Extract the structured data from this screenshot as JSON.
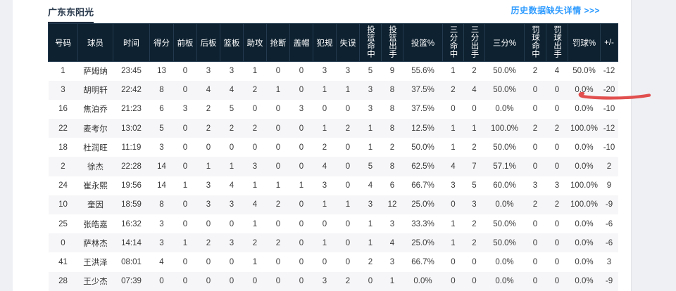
{
  "page": {
    "team_title": "广东东阳光",
    "history_link": "历史数据缺失详情 >>>",
    "colors": {
      "page_bg": "#eef0f4",
      "panel_bg": "#ffffff",
      "header_bg": "#0d2130",
      "header_border": "#243a4e",
      "link_blue": "#2e9bff",
      "row_alt": "#f6f6f8",
      "annotation_red": "#e14f4e"
    },
    "annotation": {
      "type": "hand-drawn-red-underline",
      "marks_row_player": "胡明轩",
      "marks_values": [
        "0.0%",
        "-20"
      ]
    }
  },
  "table": {
    "columns": [
      {
        "label": "号码",
        "vertical": false
      },
      {
        "label": "球员",
        "vertical": false
      },
      {
        "label": "时间",
        "vertical": false
      },
      {
        "label": "得分",
        "vertical": false
      },
      {
        "label": "前板",
        "vertical": false
      },
      {
        "label": "后板",
        "vertical": false
      },
      {
        "label": "篮板",
        "vertical": false
      },
      {
        "label": "助攻",
        "vertical": false
      },
      {
        "label": "抢断",
        "vertical": false
      },
      {
        "label": "盖帽",
        "vertical": false
      },
      {
        "label": "犯规",
        "vertical": false
      },
      {
        "label": "失误",
        "vertical": false
      },
      {
        "label": "投篮命中",
        "vertical": true
      },
      {
        "label": "投篮出手",
        "vertical": true
      },
      {
        "label": "投篮%",
        "vertical": false
      },
      {
        "label": "三分命中",
        "vertical": true
      },
      {
        "label": "三分出手",
        "vertical": true
      },
      {
        "label": "三分%",
        "vertical": false
      },
      {
        "label": "罚球命中",
        "vertical": true
      },
      {
        "label": "罚球出手",
        "vertical": true
      },
      {
        "label": "罚球%",
        "vertical": false
      },
      {
        "label": "+/-",
        "vertical": false
      }
    ],
    "rows": [
      [
        "1",
        "萨姆纳",
        "23:45",
        "13",
        "0",
        "3",
        "3",
        "1",
        "0",
        "0",
        "3",
        "3",
        "5",
        "9",
        "55.6%",
        "1",
        "2",
        "50.0%",
        "2",
        "4",
        "50.0%",
        "-12"
      ],
      [
        "3",
        "胡明轩",
        "22:42",
        "8",
        "0",
        "4",
        "4",
        "2",
        "1",
        "0",
        "1",
        "1",
        "3",
        "8",
        "37.5%",
        "2",
        "4",
        "50.0%",
        "0",
        "0",
        "0.0%",
        "-20"
      ],
      [
        "16",
        "焦泊乔",
        "21:23",
        "6",
        "3",
        "2",
        "5",
        "0",
        "0",
        "3",
        "0",
        "0",
        "3",
        "8",
        "37.5%",
        "0",
        "0",
        "0.0%",
        "0",
        "0",
        "0.0%",
        "-10"
      ],
      [
        "22",
        "麦考尔",
        "13:02",
        "5",
        "0",
        "2",
        "2",
        "2",
        "0",
        "0",
        "1",
        "2",
        "1",
        "8",
        "12.5%",
        "1",
        "1",
        "100.0%",
        "2",
        "2",
        "100.0%",
        "-12"
      ],
      [
        "18",
        "杜润旺",
        "11:19",
        "3",
        "0",
        "0",
        "0",
        "0",
        "0",
        "0",
        "2",
        "0",
        "1",
        "2",
        "50.0%",
        "1",
        "2",
        "50.0%",
        "0",
        "0",
        "0.0%",
        "-10"
      ],
      [
        "2",
        "徐杰",
        "22:28",
        "14",
        "0",
        "1",
        "1",
        "3",
        "0",
        "0",
        "4",
        "0",
        "5",
        "8",
        "62.5%",
        "4",
        "7",
        "57.1%",
        "0",
        "0",
        "0.0%",
        "2"
      ],
      [
        "24",
        "崔永熙",
        "19:56",
        "14",
        "1",
        "3",
        "4",
        "1",
        "1",
        "1",
        "3",
        "0",
        "4",
        "6",
        "66.7%",
        "3",
        "5",
        "60.0%",
        "3",
        "3",
        "100.0%",
        "9"
      ],
      [
        "10",
        "奎因",
        "18:59",
        "8",
        "0",
        "3",
        "3",
        "4",
        "2",
        "0",
        "1",
        "1",
        "3",
        "12",
        "25.0%",
        "0",
        "3",
        "0.0%",
        "2",
        "2",
        "100.0%",
        "-9"
      ],
      [
        "25",
        "张皓嘉",
        "16:32",
        "3",
        "0",
        "0",
        "0",
        "1",
        "0",
        "0",
        "0",
        "0",
        "1",
        "3",
        "33.3%",
        "1",
        "2",
        "50.0%",
        "0",
        "0",
        "0.0%",
        "-6"
      ],
      [
        "0",
        "萨林杰",
        "14:14",
        "3",
        "1",
        "2",
        "3",
        "2",
        "2",
        "0",
        "1",
        "0",
        "1",
        "4",
        "25.0%",
        "1",
        "2",
        "50.0%",
        "0",
        "0",
        "0.0%",
        "-6"
      ],
      [
        "41",
        "王洪泽",
        "08:01",
        "4",
        "0",
        "0",
        "0",
        "1",
        "0",
        "0",
        "0",
        "0",
        "2",
        "3",
        "66.7%",
        "0",
        "0",
        "0.0%",
        "0",
        "0",
        "0.0%",
        "3"
      ],
      [
        "28",
        "王少杰",
        "07:39",
        "0",
        "0",
        "0",
        "0",
        "0",
        "0",
        "0",
        "3",
        "2",
        "0",
        "1",
        "0.0%",
        "0",
        "0",
        "0.0%",
        "0",
        "0",
        "0.0%",
        "-9"
      ]
    ]
  }
}
